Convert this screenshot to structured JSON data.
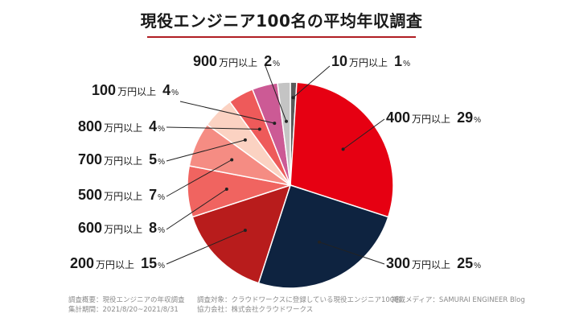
{
  "title": "現役エンジニア100名の平均年収調査",
  "chart_data": {
    "type": "pie",
    "title": "現役エンジニア100名の平均年収調査",
    "unit_label": "万円以上",
    "percent_sign": "%",
    "slices": [
      {
        "label": "10",
        "value": 1,
        "color": "#5a5a5a"
      },
      {
        "label": "400",
        "value": 29,
        "color": "#e60012"
      },
      {
        "label": "300",
        "value": 25,
        "color": "#0e2340"
      },
      {
        "label": "200",
        "value": 15,
        "color": "#b81c1c"
      },
      {
        "label": "600",
        "value": 8,
        "color": "#f06460"
      },
      {
        "label": "500",
        "value": 7,
        "color": "#f58c83"
      },
      {
        "label": "700",
        "value": 5,
        "color": "#fbd2c2"
      },
      {
        "label": "800",
        "value": 4,
        "color": "#ee5a5a"
      },
      {
        "label": "100",
        "value": 4,
        "color": "#cc5a95"
      },
      {
        "label": "900",
        "value": 2,
        "color": "#c4c4c4"
      }
    ]
  },
  "footer": {
    "survey_summary": "調査概要：現役エンジニアの年収調査",
    "survey_period": "集計期間：2021/8/20~2021/8/31",
    "survey_target": "調査対象：クラウドワークスに登録している現役エンジニア100名",
    "cooperation": "協力会社：株式会社クラウドワークス",
    "media": "掲載メディア：SAMURAI ENGINEER Blog"
  }
}
